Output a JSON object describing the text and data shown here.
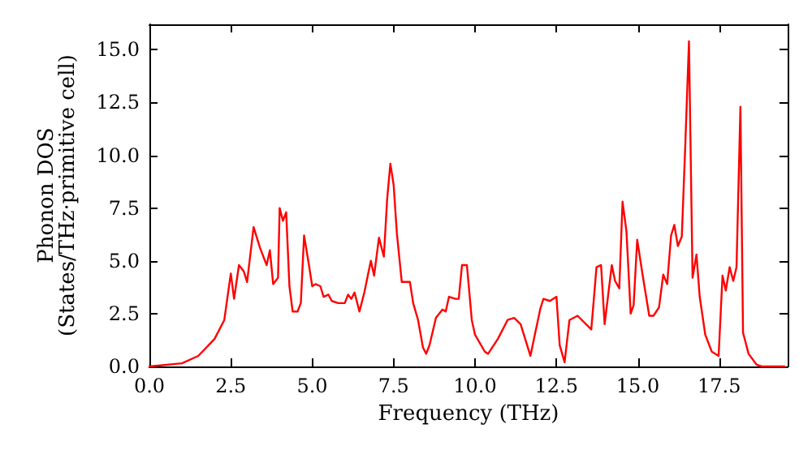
{
  "chart_data": {
    "type": "line",
    "xlabel": "Frequency (THz)",
    "ylabel": "Phonon DOS\n(States/THz·primitive cell)",
    "xlim": [
      0,
      19.6
    ],
    "ylim": [
      0,
      16.2
    ],
    "xticks": [
      {
        "value": 0,
        "label": "0.0"
      },
      {
        "value": 2.5,
        "label": "2.5"
      },
      {
        "value": 5,
        "label": "5.0"
      },
      {
        "value": 7.5,
        "label": "7.5"
      },
      {
        "value": 10,
        "label": "10.0"
      },
      {
        "value": 12.5,
        "label": "12.5"
      },
      {
        "value": 15,
        "label": "15.0"
      },
      {
        "value": 17.5,
        "label": "17.5"
      }
    ],
    "yticks": [
      {
        "value": 0,
        "label": "0.0"
      },
      {
        "value": 2.5,
        "label": "2.5"
      },
      {
        "value": 5,
        "label": "5.0"
      },
      {
        "value": 7.5,
        "label": "7.5"
      },
      {
        "value": 10,
        "label": "10.0"
      },
      {
        "value": 12.5,
        "label": "12.5"
      },
      {
        "value": 15,
        "label": "15.0"
      }
    ],
    "grid": false,
    "marker": "none",
    "line_style": "solid",
    "series": [
      {
        "color": "#ff0000",
        "x": [
          0,
          1,
          1.5,
          2,
          2.3,
          2.5,
          2.6,
          2.75,
          2.9,
          3.0,
          3.2,
          3.4,
          3.6,
          3.7,
          3.8,
          3.95,
          4.0,
          4.1,
          4.2,
          4.3,
          4.4,
          4.55,
          4.65,
          4.75,
          4.9,
          5.0,
          5.1,
          5.25,
          5.35,
          5.5,
          5.6,
          5.8,
          6.0,
          6.1,
          6.2,
          6.3,
          6.45,
          6.6,
          6.8,
          6.9,
          7.05,
          7.2,
          7.3,
          7.4,
          7.5,
          7.6,
          7.75,
          8.0,
          8.1,
          8.25,
          8.4,
          8.5,
          8.6,
          8.8,
          9.0,
          9.1,
          9.2,
          9.4,
          9.5,
          9.6,
          9.75,
          9.9,
          10.0,
          10.3,
          10.4,
          10.7,
          11.0,
          11.2,
          11.4,
          11.7,
          12.0,
          12.1,
          12.3,
          12.5,
          12.6,
          12.75,
          12.9,
          13.15,
          13.57,
          13.73,
          13.87,
          13.98,
          14.2,
          14.3,
          14.43,
          14.53,
          14.65,
          14.78,
          14.87,
          14.98,
          15.15,
          15.35,
          15.48,
          15.65,
          15.78,
          15.9,
          16.02,
          16.12,
          16.23,
          16.35,
          16.45,
          16.57,
          16.68,
          16.8,
          16.9,
          17.07,
          17.27,
          17.48,
          17.6,
          17.7,
          17.82,
          17.93,
          18.03,
          18.15,
          18.23,
          18.4,
          18.65,
          18.8,
          19.5
        ],
        "values": [
          0,
          0.15,
          0.5,
          1.3,
          2.2,
          4.4,
          3.2,
          4.8,
          4.5,
          4.0,
          6.6,
          5.6,
          4.8,
          5.5,
          3.9,
          4.2,
          7.5,
          6.9,
          7.3,
          3.8,
          2.6,
          2.6,
          3.0,
          6.2,
          4.8,
          3.8,
          3.9,
          3.8,
          3.3,
          3.4,
          3.1,
          3.0,
          3.0,
          3.4,
          3.2,
          3.5,
          2.6,
          3.5,
          5.0,
          4.3,
          6.1,
          5.2,
          7.9,
          9.6,
          8.6,
          6.3,
          4.0,
          4.0,
          3.0,
          2.2,
          0.9,
          0.6,
          1.0,
          2.3,
          2.7,
          2.6,
          3.3,
          3.2,
          3.2,
          4.8,
          4.8,
          2.2,
          1.5,
          0.7,
          0.6,
          1.3,
          2.2,
          2.3,
          2.0,
          0.5,
          2.7,
          3.2,
          3.1,
          3.3,
          1.0,
          0.2,
          2.2,
          2.4,
          1.75,
          4.7,
          4.8,
          2.0,
          4.8,
          4.05,
          3.7,
          7.8,
          6.4,
          2.5,
          2.9,
          6.0,
          4.3,
          2.4,
          2.4,
          2.8,
          4.35,
          3.9,
          6.2,
          6.7,
          5.7,
          6.15,
          10.2,
          15.4,
          4.2,
          5.3,
          3.3,
          1.5,
          0.7,
          0.5,
          4.3,
          3.6,
          4.7,
          4.05,
          4.7,
          12.3,
          1.6,
          0.6,
          0.08,
          0,
          0
        ]
      }
    ]
  }
}
